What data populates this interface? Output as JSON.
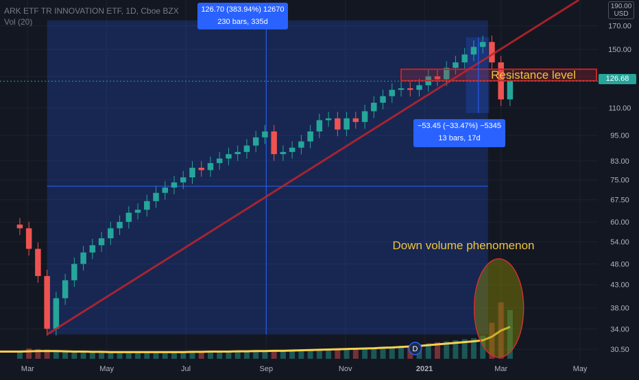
{
  "header": {
    "symbol_line": "ARK ETF TR INNOVATION ETF, 1D, Cboe BZX",
    "volume_line": "Vol (20)"
  },
  "price_axis": {
    "currency_line1": "190.00",
    "currency_line2": "USD",
    "current_price": "126.68",
    "ticks": [
      "170.00",
      "150.00",
      "130.00",
      "110.00",
      "95.00",
      "83.00",
      "75.00",
      "67.50",
      "60.00",
      "54.00",
      "48.00",
      "43.00",
      "38.00",
      "34.00",
      "30.50"
    ]
  },
  "time_axis": {
    "ticks": [
      "Mar",
      "May",
      "Jul",
      "Sep",
      "Nov",
      "2021",
      "Mar",
      "May"
    ]
  },
  "measure_up": {
    "line1": "126.70 (383.94%) 12670",
    "line2": "230 bars, 335d"
  },
  "measure_down": {
    "line1": "−53.45 (−33.47%) −5345",
    "line2": "13 bars, 17d"
  },
  "annotations": {
    "resistance": "Resistance level",
    "volume_note": "Down volume phenomenon",
    "dividend_marker": "D"
  },
  "colors": {
    "background": "#131722",
    "up_candle": "#26a69a",
    "down_candle": "#ef5350",
    "trendline": "#c2232a",
    "measure_fill": "#2962ff",
    "volume_ma": "#ffd34d",
    "annotation_text": "#f2c43d",
    "price_tag": "#26a69a"
  },
  "chart_data": {
    "type": "candlestick",
    "scale": "log",
    "x": [
      "2020-02-24",
      "2020-03-02",
      "2020-03-09",
      "2020-03-16",
      "2020-03-23",
      "2020-03-30",
      "2020-04-06",
      "2020-04-13",
      "2020-04-20",
      "2020-04-27",
      "2020-05-04",
      "2020-05-11",
      "2020-05-18",
      "2020-05-25",
      "2020-06-01",
      "2020-06-08",
      "2020-06-15",
      "2020-06-22",
      "2020-06-29",
      "2020-07-06",
      "2020-07-13",
      "2020-07-20",
      "2020-07-27",
      "2020-08-03",
      "2020-08-10",
      "2020-08-17",
      "2020-08-24",
      "2020-08-31",
      "2020-09-07",
      "2020-09-14",
      "2020-09-21",
      "2020-09-28",
      "2020-10-05",
      "2020-10-12",
      "2020-10-19",
      "2020-10-26",
      "2020-11-02",
      "2020-11-09",
      "2020-11-16",
      "2020-11-23",
      "2020-11-30",
      "2020-12-07",
      "2020-12-14",
      "2020-12-21",
      "2020-12-28",
      "2021-01-04",
      "2021-01-11",
      "2021-01-18",
      "2021-01-25",
      "2021-02-01",
      "2021-02-08",
      "2021-02-15",
      "2021-02-22",
      "2021-03-01",
      "2021-03-08"
    ],
    "close": [
      58,
      52,
      45,
      34,
      40,
      44,
      48,
      51,
      53,
      55,
      58,
      60,
      63,
      64,
      67,
      70,
      72,
      74,
      76,
      80,
      79,
      82,
      84,
      86,
      87,
      90,
      94,
      97,
      86,
      87,
      89,
      92,
      97,
      103,
      104,
      98,
      104,
      102,
      108,
      113,
      117,
      121,
      122,
      121,
      124,
      130,
      128,
      136,
      140,
      146,
      152,
      156,
      140,
      115,
      126.68
    ],
    "volume": [
      3.2,
      4.0,
      3.8,
      3.6,
      3.2,
      2.9,
      2.8,
      2.7,
      2.6,
      2.6,
      2.6,
      2.5,
      2.5,
      2.5,
      2.6,
      2.6,
      2.6,
      2.6,
      2.6,
      2.7,
      2.7,
      2.8,
      2.8,
      2.9,
      2.9,
      3.0,
      3.0,
      3.1,
      3.2,
      3.2,
      3.3,
      3.4,
      3.5,
      3.6,
      3.7,
      3.8,
      4.0,
      4.1,
      4.2,
      4.3,
      4.5,
      4.8,
      5.0,
      5.2,
      5.4,
      6.0,
      6.4,
      6.8,
      7.2,
      7.6,
      8.0,
      9.0,
      14,
      22,
      19
    ],
    "volume_ma": [
      2.8,
      2.9,
      3.0,
      3.0,
      3.0,
      2.9,
      2.8,
      2.8,
      2.7,
      2.7,
      2.6,
      2.6,
      2.6,
      2.6,
      2.6,
      2.6,
      2.6,
      2.6,
      2.6,
      2.7,
      2.7,
      2.8,
      2.8,
      2.8,
      2.9,
      2.9,
      3.0,
      3.0,
      3.1,
      3.1,
      3.2,
      3.3,
      3.4,
      3.5,
      3.6,
      3.7,
      3.8,
      3.9,
      4.0,
      4.1,
      4.3,
      4.4,
      4.6,
      4.8,
      5.0,
      5.3,
      5.6,
      5.9,
      6.2,
      6.5,
      6.8,
      7.2,
      8.6,
      11.0,
      12.4
    ],
    "ylim": [
      29,
      195
    ],
    "trendline": {
      "start": [
        "2020-03-16",
        33
      ],
      "end": [
        "2021-04-30",
        195
      ]
    },
    "resistance_zone": [
      127,
      135
    ],
    "current_price": 126.68
  }
}
